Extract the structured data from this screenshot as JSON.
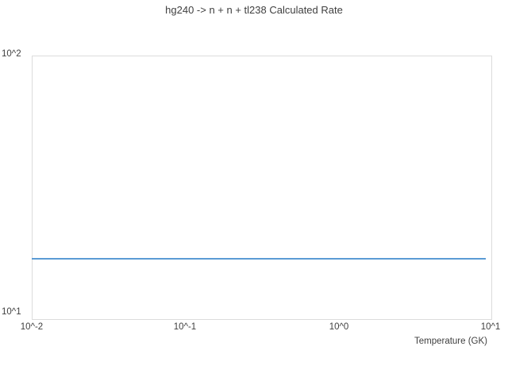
{
  "chart_data": {
    "type": "line",
    "title": "hg240 -> n + n + tl238 Calculated Rate",
    "xlabel": "Temperature (GK)",
    "ylabel": "",
    "x_scale": "log",
    "y_scale": "log",
    "xlim": [
      0.01,
      10
    ],
    "ylim": [
      10,
      100
    ],
    "x_tick_labels": [
      "10^-2",
      "10^-1",
      "10^0",
      "10^1"
    ],
    "y_tick_labels": [
      "10^1",
      "10^2"
    ],
    "grid": false,
    "legend": "none",
    "series": [
      {
        "name": "Calculated Rate",
        "color": "#5b9bd5",
        "x": [
          0.01,
          9.1
        ],
        "y": [
          17,
          17
        ],
        "note": "constant rate of about 17 across the full temperature range"
      }
    ]
  },
  "colors": {
    "line": "#5b9bd5",
    "plot_border": "#dcdcdc",
    "text": "#404040",
    "background": "#ffffff"
  }
}
